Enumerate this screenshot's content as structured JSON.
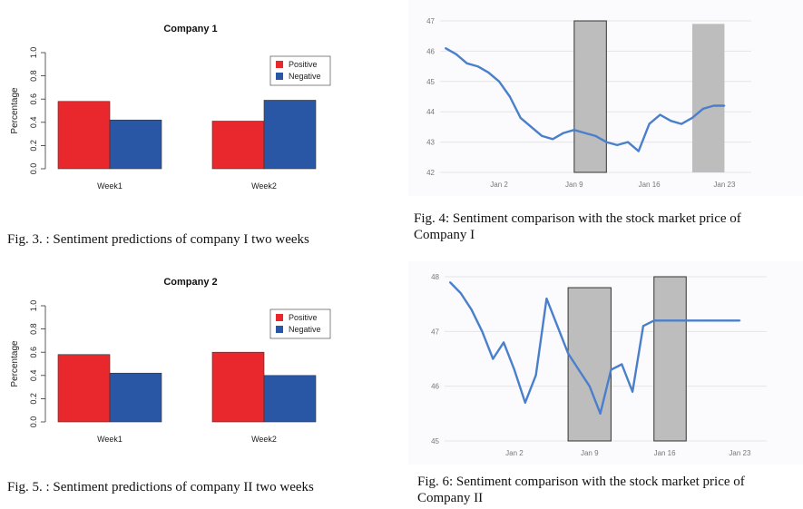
{
  "charts": [
    {
      "type": "bar",
      "title": "Company 1",
      "ylabel": "Percentage",
      "ylim": [
        0,
        1
      ],
      "yticks": [
        "0.0",
        "0.2",
        "0.4",
        "0.6",
        "0.8",
        "1.0"
      ],
      "categories": [
        "Week1",
        "Week2"
      ],
      "series": [
        {
          "name": "Positive",
          "color": "#e8282d",
          "values": [
            0.58,
            0.41
          ]
        },
        {
          "name": "Negative",
          "color": "#2a56a6",
          "values": [
            0.42,
            0.59
          ]
        }
      ],
      "legend": "top-right"
    },
    {
      "type": "line",
      "yticks": [
        42,
        43,
        44,
        45,
        46,
        47
      ],
      "xticks": [
        "Jan 2",
        "Jan 9",
        "Jan 16",
        "Jan 23"
      ],
      "xticks_day": [
        2,
        9,
        16,
        23
      ],
      "x_range": [
        -3.5,
        25.5
      ],
      "ylim": [
        42,
        47
      ],
      "line_color": "#4a7fcb",
      "x": [
        -3,
        -2,
        -1,
        0,
        1,
        2,
        3,
        4,
        5,
        6,
        7,
        8,
        9,
        10,
        11,
        12,
        13,
        14,
        15,
        16,
        17,
        18,
        19,
        20,
        21,
        22,
        23
      ],
      "y": [
        46.1,
        45.9,
        45.6,
        45.5,
        45.3,
        45.0,
        44.5,
        43.8,
        43.5,
        43.2,
        43.1,
        43.3,
        43.4,
        43.3,
        43.2,
        43.0,
        42.9,
        43.0,
        42.7,
        43.6,
        43.9,
        43.7,
        43.6,
        43.8,
        44.1,
        44.2,
        44.2
      ],
      "shaded": [
        {
          "from": 9,
          "to": 12,
          "ymin": 42,
          "ymax": 47,
          "border": true
        },
        {
          "from": 20,
          "to": 23,
          "ymin": 42,
          "ymax": 46.9,
          "border": false
        }
      ]
    },
    {
      "type": "bar",
      "title": "Company 2",
      "ylabel": "Percentage",
      "ylim": [
        0,
        1
      ],
      "yticks": [
        "0.0",
        "0.2",
        "0.4",
        "0.6",
        "0.8",
        "1.0"
      ],
      "categories": [
        "Week1",
        "Week2"
      ],
      "series": [
        {
          "name": "Positive",
          "color": "#e8282d",
          "values": [
            0.58,
            0.6
          ]
        },
        {
          "name": "Negative",
          "color": "#2a56a6",
          "values": [
            0.42,
            0.4
          ]
        }
      ],
      "legend": "top-right"
    },
    {
      "type": "line",
      "yticks": [
        45,
        46,
        47,
        48
      ],
      "xticks": [
        "Jan 2",
        "Jan 9",
        "Jan 16",
        "Jan 23"
      ],
      "xticks_day": [
        2,
        9,
        16,
        23
      ],
      "x_range": [
        -4.5,
        25.5
      ],
      "ylim": [
        45,
        48
      ],
      "line_color": "#4a7fcb",
      "x": [
        -4,
        -3,
        -2,
        -1,
        0,
        1,
        2,
        3,
        4,
        5,
        6,
        7,
        8,
        9,
        10,
        11,
        12,
        13,
        14,
        15,
        16,
        17,
        18,
        19,
        20,
        21,
        22,
        23
      ],
      "y": [
        47.9,
        47.7,
        47.4,
        47.0,
        46.5,
        46.8,
        46.3,
        45.7,
        46.2,
        47.6,
        47.1,
        46.6,
        46.3,
        46.0,
        45.5,
        46.3,
        46.4,
        45.9,
        47.1,
        47.2,
        47.2,
        47.2,
        47.2,
        47.2,
        47.2,
        47.2,
        47.2,
        47.2
      ],
      "shaded": [
        {
          "from": 7,
          "to": 11,
          "ymin": 45,
          "ymax": 47.8,
          "border": true
        },
        {
          "from": 15,
          "to": 18,
          "ymin": 45,
          "ymax": 48,
          "border": true
        }
      ]
    }
  ],
  "captions": [
    "Fig. 3. : Sentiment predictions of company I two weeks",
    "Fig. 4: Sentiment comparison with the stock market price of Company I",
    "Fig. 5. : Sentiment predictions of company II two weeks",
    "Fig. 6: Sentiment comparison with the stock market price of Company II"
  ]
}
